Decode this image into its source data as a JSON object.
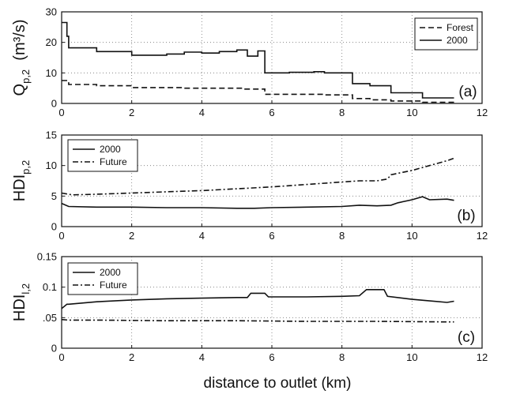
{
  "xlabel": "distance to outlet (km)",
  "chart_data": [
    {
      "type": "line",
      "panel_tag": "(a)",
      "ylabel": {
        "main": "Q",
        "sub": "p,2",
        "unit": "(m³/s)"
      },
      "xlim": [
        0,
        12
      ],
      "ylim": [
        0,
        30
      ],
      "xticks": [
        "0",
        "2",
        "4",
        "6",
        "8",
        "10",
        "12"
      ],
      "yticks": [
        "0",
        "10",
        "20",
        "30"
      ],
      "grid": true,
      "legend_position": "top-right",
      "series": [
        {
          "name": "Forest",
          "style": "dashed",
          "x": [
            0,
            0.2,
            0.2,
            1.0,
            1.0,
            2.0,
            2.0,
            3.5,
            3.5,
            5.2,
            5.2,
            5.8,
            5.8,
            7.5,
            7.5,
            8.3,
            8.3,
            8.8,
            8.8,
            9.4,
            9.4,
            10.3,
            10.3,
            11.2
          ],
          "y": [
            7.5,
            7.5,
            6.2,
            6.2,
            5.8,
            5.8,
            5.2,
            5.2,
            5.0,
            5.0,
            4.7,
            4.7,
            3.0,
            3.0,
            2.8,
            2.8,
            1.6,
            1.6,
            1.2,
            1.2,
            0.8,
            0.8,
            0.4,
            0.4
          ]
        },
        {
          "name": "2000",
          "style": "solid",
          "x": [
            0,
            0.15,
            0.15,
            0.2,
            0.2,
            1.0,
            1.0,
            2.0,
            2.0,
            3.0,
            3.0,
            3.5,
            3.5,
            4.0,
            4.0,
            4.5,
            4.5,
            5.0,
            5.0,
            5.3,
            5.3,
            5.6,
            5.6,
            5.8,
            5.8,
            6.5,
            6.5,
            7.2,
            7.2,
            7.5,
            7.5,
            8.3,
            8.3,
            8.8,
            8.8,
            9.4,
            9.4,
            10.3,
            10.3,
            11.2
          ],
          "y": [
            26.5,
            26.5,
            22.0,
            22.0,
            18.2,
            18.2,
            17.0,
            17.0,
            15.8,
            15.8,
            16.2,
            16.2,
            16.8,
            16.8,
            16.5,
            16.5,
            17.0,
            17.0,
            17.5,
            17.5,
            15.5,
            15.5,
            17.2,
            17.2,
            10.0,
            10.0,
            10.2,
            10.2,
            10.4,
            10.4,
            10.0,
            10.0,
            6.5,
            6.5,
            5.8,
            5.8,
            3.5,
            3.5,
            1.8,
            1.8
          ]
        }
      ]
    },
    {
      "type": "line",
      "panel_tag": "(b)",
      "ylabel": {
        "main": "HDI",
        "sub": "p,2",
        "unit": ""
      },
      "xlim": [
        0,
        12
      ],
      "ylim": [
        0,
        15
      ],
      "xticks": [
        "0",
        "2",
        "4",
        "6",
        "8",
        "10",
        "12"
      ],
      "yticks": [
        "0",
        "5",
        "10",
        "15"
      ],
      "grid": true,
      "legend_position": "top-left",
      "series": [
        {
          "name": "2000",
          "style": "solid",
          "x": [
            0,
            0.2,
            1,
            2,
            3,
            4,
            5,
            5.5,
            6,
            7,
            8,
            8.5,
            9,
            9.4,
            9.6,
            10,
            10.3,
            10.5,
            11,
            11.2
          ],
          "y": [
            3.8,
            3.3,
            3.2,
            3.2,
            3.1,
            3.1,
            3.0,
            3.0,
            3.1,
            3.2,
            3.3,
            3.5,
            3.4,
            3.5,
            3.9,
            4.4,
            4.9,
            4.4,
            4.5,
            4.3
          ]
        },
        {
          "name": "Future",
          "style": "dash-dot",
          "x": [
            0,
            0.3,
            1,
            2,
            3,
            4,
            5,
            6,
            7,
            8,
            8.5,
            9,
            9.3,
            9.4,
            10,
            10.5,
            11,
            11.2
          ],
          "y": [
            5.5,
            5.2,
            5.3,
            5.5,
            5.7,
            5.9,
            6.2,
            6.5,
            6.9,
            7.3,
            7.5,
            7.5,
            7.8,
            8.5,
            9.2,
            10.0,
            10.8,
            11.2
          ]
        }
      ]
    },
    {
      "type": "line",
      "panel_tag": "(c)",
      "ylabel": {
        "main": "HDI",
        "sub": "l,2",
        "unit": ""
      },
      "xlim": [
        0,
        12
      ],
      "ylim": [
        0,
        0.15
      ],
      "xticks": [
        "0",
        "2",
        "4",
        "6",
        "8",
        "10",
        "12"
      ],
      "yticks": [
        "0",
        ".05",
        "0.1",
        "0.15"
      ],
      "grid": true,
      "legend_position": "top-left",
      "series": [
        {
          "name": "2000",
          "style": "solid",
          "x": [
            0,
            0.15,
            0.2,
            1,
            2,
            3,
            4,
            5,
            5.3,
            5.4,
            5.8,
            5.9,
            7,
            8,
            8.5,
            8.7,
            9.2,
            9.3,
            10,
            11,
            11.2
          ],
          "y": [
            0.065,
            0.072,
            0.072,
            0.076,
            0.079,
            0.081,
            0.082,
            0.083,
            0.083,
            0.09,
            0.09,
            0.084,
            0.084,
            0.085,
            0.086,
            0.096,
            0.096,
            0.085,
            0.08,
            0.075,
            0.077
          ]
        },
        {
          "name": "Future",
          "style": "dash-dot",
          "x": [
            0,
            0.2,
            1,
            3,
            5,
            7,
            9,
            11,
            11.2
          ],
          "y": [
            0.047,
            0.046,
            0.046,
            0.045,
            0.045,
            0.044,
            0.044,
            0.043,
            0.043
          ]
        }
      ]
    }
  ]
}
